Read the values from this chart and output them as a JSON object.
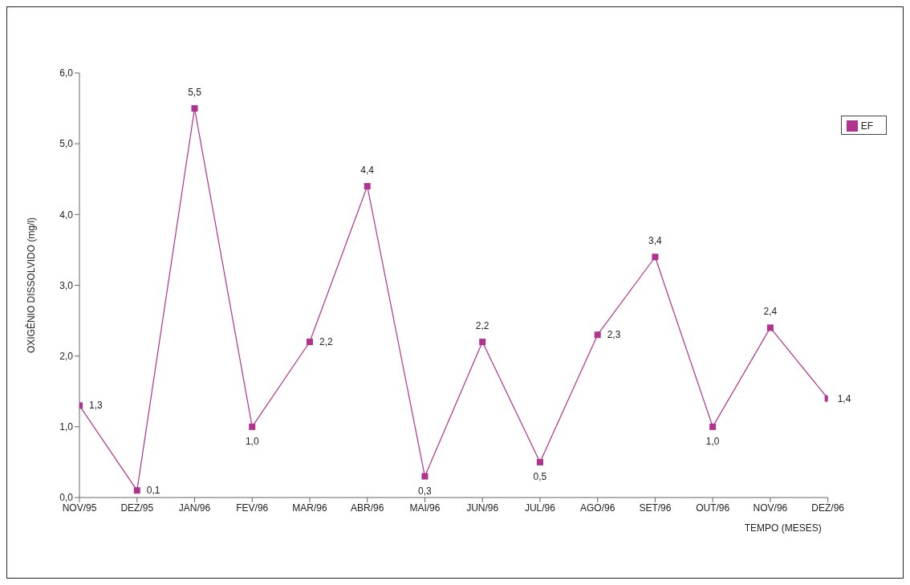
{
  "chart_data": {
    "type": "line",
    "xlabel": "TEMPO (MESES)",
    "ylabel": "OXIGÊNIO DISSOLVIDO (mg/l)",
    "categories": [
      "NOV/95",
      "DEZ/95",
      "JAN/96",
      "FEV/96",
      "MAR/96",
      "ABR/96",
      "MAI/96",
      "JUN/96",
      "JUL/96",
      "AGO/96",
      "SET/96",
      "OUT/96",
      "NOV/96",
      "DEZ/96"
    ],
    "series": [
      {
        "name": "EF",
        "color": "#b0338f",
        "values": [
          1.3,
          0.1,
          5.5,
          1.0,
          2.2,
          4.4,
          0.3,
          2.2,
          0.5,
          2.3,
          3.4,
          1.0,
          2.4,
          1.4
        ],
        "value_labels": [
          "1,3",
          "0,1",
          "5,5",
          "1,0",
          "2,2",
          "4,4",
          "0,3",
          "2,2",
          "0,5",
          "2,3",
          "3,4",
          "1,0",
          "2,4",
          "1,4"
        ]
      }
    ],
    "ylim": [
      0,
      6
    ],
    "yticks": [
      {
        "value": 0,
        "label": "0,0"
      },
      {
        "value": 1,
        "label": "1,0"
      },
      {
        "value": 2,
        "label": "2,0"
      },
      {
        "value": 3,
        "label": "3,0"
      },
      {
        "value": 4,
        "label": "4,0"
      },
      {
        "value": 5,
        "label": "5,0"
      },
      {
        "value": 6,
        "label": "6,0"
      }
    ],
    "grid": false,
    "legend": "top right",
    "marker": "square",
    "line_style": "solid"
  }
}
